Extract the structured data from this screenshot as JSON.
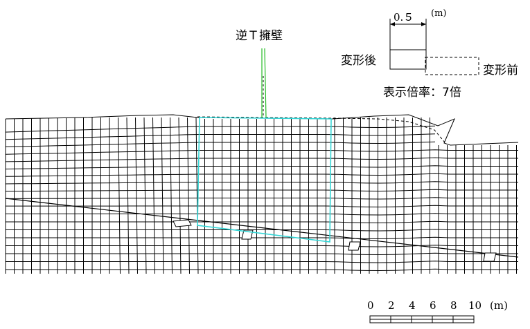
{
  "labels": {
    "wall": "逆Ｔ擁壁",
    "after": "変形後",
    "before": "変形前",
    "magnification": "表示倍率：7倍",
    "ref_length": "0.５",
    "ref_unit": "(m)"
  },
  "scale_bar": {
    "ticks": [
      "0",
      "2",
      "4",
      "6",
      "8",
      "10"
    ],
    "unit": "(m)"
  },
  "colors": {
    "mesh": "#000000",
    "wall_outline": "#33d6d6",
    "wall_stem": "#22bb22",
    "background": "#ffffff"
  }
}
